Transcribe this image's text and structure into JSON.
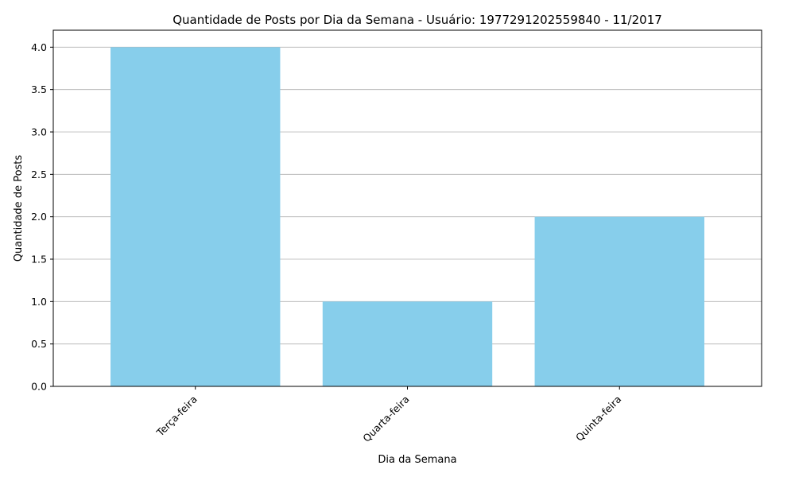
{
  "chart_data": {
    "type": "bar",
    "title": "Quantidade de Posts por Dia da Semana - Usuário: 1977291202559840 - 11/2017",
    "xlabel": "Dia da Semana",
    "ylabel": "Quantidade de Posts",
    "categories": [
      "Terça-feira",
      "Quarta-feira",
      "Quinta-feira"
    ],
    "values": [
      4,
      1,
      2
    ],
    "ylim": [
      0,
      4.2
    ],
    "yticks": [
      "0.0",
      "0.5",
      "1.0",
      "1.5",
      "2.0",
      "2.5",
      "3.0",
      "3.5",
      "4.0"
    ],
    "ytick_values": [
      0,
      0.5,
      1,
      1.5,
      2,
      2.5,
      3,
      3.5,
      4
    ],
    "grid": "horizontal",
    "bar_color": "#87ceeb",
    "grid_color": "#b0b0b0"
  }
}
